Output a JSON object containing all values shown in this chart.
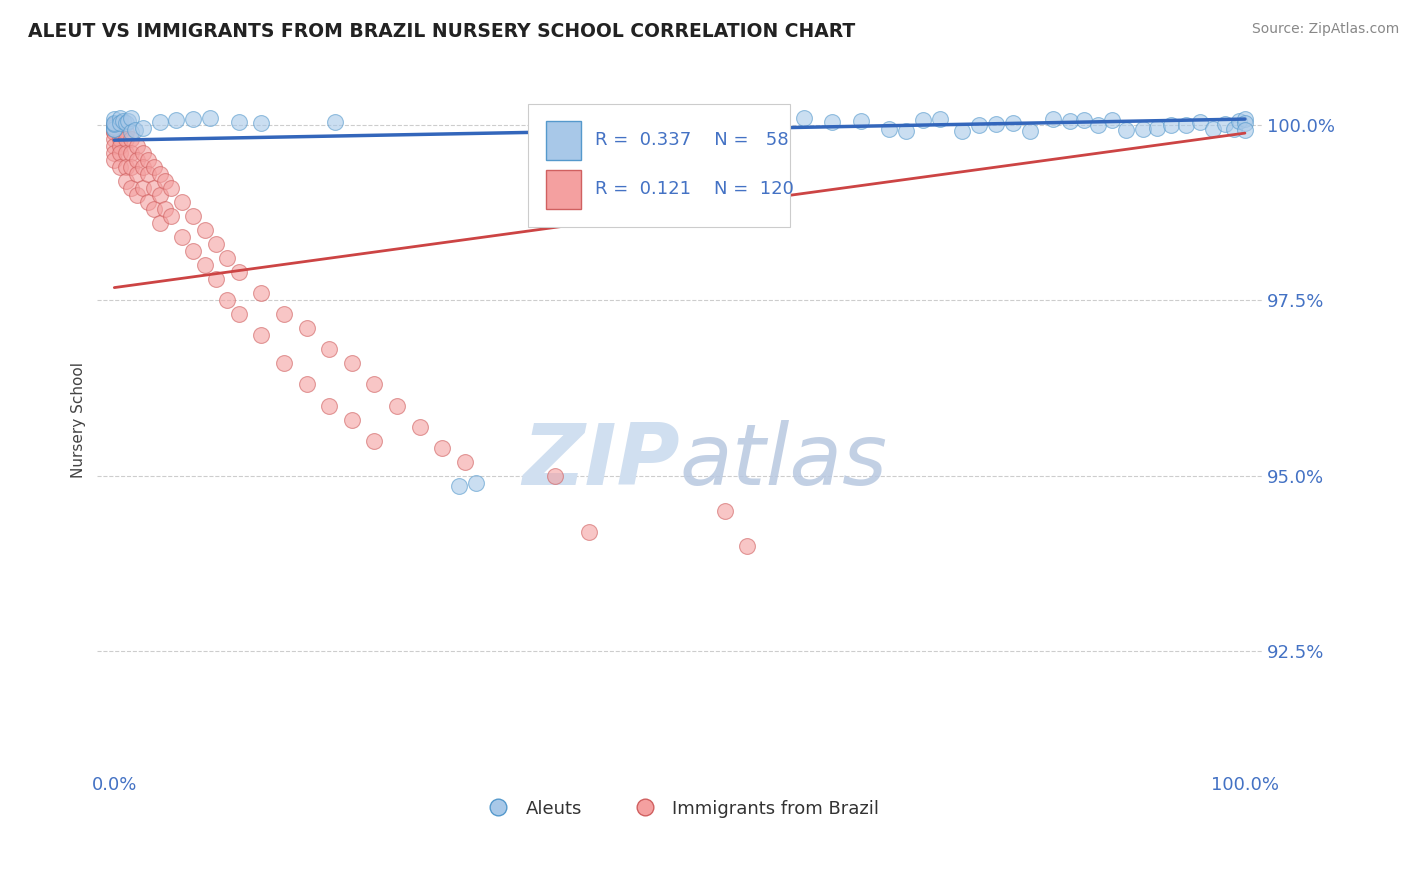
{
  "title": "ALEUT VS IMMIGRANTS FROM BRAZIL NURSERY SCHOOL CORRELATION CHART",
  "source_text": "Source: ZipAtlas.com",
  "ylabel": "Nursery School",
  "y_tick_labels": [
    "92.5%",
    "95.0%",
    "97.5%",
    "100.0%"
  ],
  "y_tick_values": [
    0.925,
    0.95,
    0.975,
    1.0
  ],
  "x_tick_labels": [
    "0.0%",
    "100.0%"
  ],
  "x_tick_values": [
    0.0,
    1.0
  ],
  "legend_entry1": "Aleuts",
  "legend_entry2": "Immigrants from Brazil",
  "R1": "0.337",
  "N1": "58",
  "R2": "0.121",
  "N2": "120",
  "color_blue_fill": "#a8c8e8",
  "color_blue_edge": "#5599cc",
  "color_pink_fill": "#f4a0a0",
  "color_pink_edge": "#d06060",
  "color_trendline_blue": "#3366bb",
  "color_trendline_pink": "#cc4444",
  "background_color": "#ffffff",
  "title_color": "#222222",
  "axis_label_color": "#4472c4",
  "watermark_color": "#d0dff0",
  "ylim": [
    0.908,
    1.008
  ],
  "xlim": [
    -0.015,
    1.015
  ],
  "aleut_trend_x": [
    0.0,
    1.0
  ],
  "aleut_trend_y": [
    0.9978,
    1.0008
  ],
  "brazil_trend_x": [
    0.0,
    1.0
  ],
  "brazil_trend_y": [
    0.9768,
    0.9988
  ]
}
